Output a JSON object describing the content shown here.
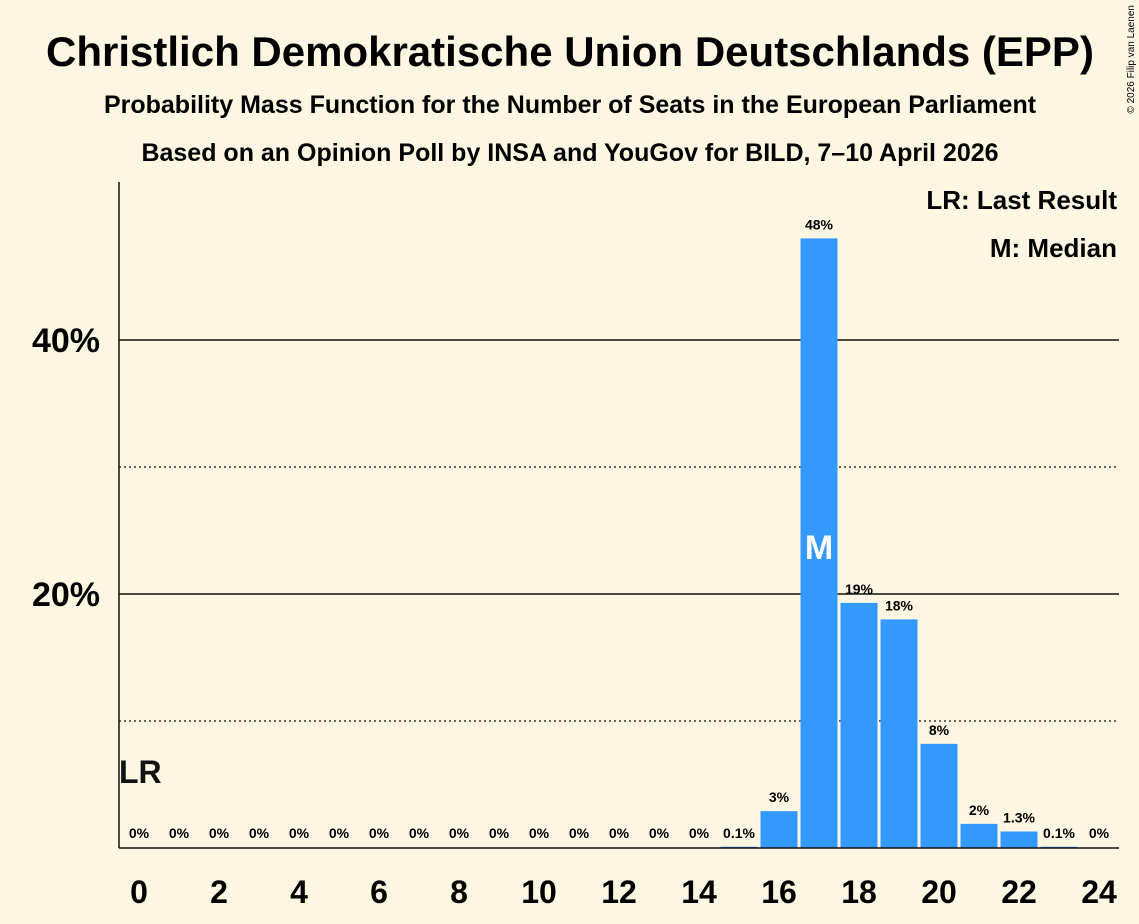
{
  "chart_data": {
    "type": "bar",
    "title": "Christlich Demokratische Union Deutschlands (EPP)",
    "subtitle": "Probability Mass Function for the Number of Seats in the European Parliament",
    "subtitle2": "Based on an Opinion Poll by INSA and YouGov for BILD, 7–10 April 2026",
    "copyright": "© 2026 Filip van Laenen",
    "xlabel": "",
    "ylabel": "",
    "x": [
      0,
      1,
      2,
      3,
      4,
      5,
      6,
      7,
      8,
      9,
      10,
      11,
      12,
      13,
      14,
      15,
      16,
      17,
      18,
      19,
      20,
      21,
      22,
      23,
      24
    ],
    "values": [
      0,
      0,
      0,
      0,
      0,
      0,
      0,
      0,
      0,
      0,
      0,
      0,
      0,
      0,
      0,
      0.1,
      2.9,
      48,
      19.3,
      18,
      8.2,
      1.9,
      1.3,
      0.1,
      0
    ],
    "labels": [
      "0%",
      "0%",
      "0%",
      "0%",
      "0%",
      "0%",
      "0%",
      "0%",
      "0%",
      "0%",
      "0%",
      "0%",
      "0%",
      "0%",
      "0%",
      "0.1%",
      "3%",
      "48%",
      "19%",
      "18%",
      "8%",
      "2%",
      "1.3%",
      "0.1%",
      "0%"
    ],
    "x_ticks": [
      "0",
      "2",
      "4",
      "6",
      "8",
      "10",
      "12",
      "14",
      "16",
      "18",
      "20",
      "22",
      "24"
    ],
    "y_ticks": [
      "20%",
      "40%"
    ],
    "ylim": [
      0,
      52
    ],
    "median_seat": 17,
    "median_marker": "M",
    "last_result_seat": 0,
    "last_result_marker": "LR",
    "legend": [
      "LR: Last Result",
      "M: Median"
    ],
    "legend_position": "top-right",
    "bar_color": "#3399ff",
    "background": "#fdf6e3"
  }
}
